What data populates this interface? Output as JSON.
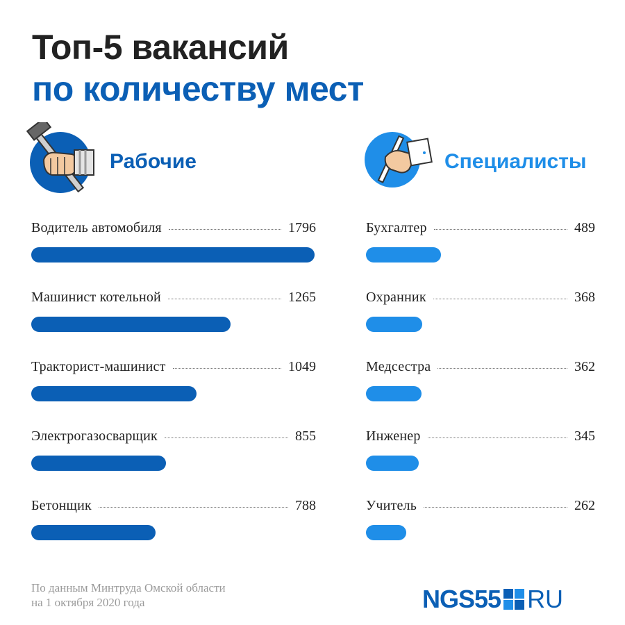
{
  "title": {
    "line1": "Топ-5 вакансий",
    "line2": "по количеству мест"
  },
  "colors": {
    "dark_blue": "#0b5fb5",
    "light_blue": "#1f8ee8",
    "text": "#222222",
    "muted": "#9a9a9a"
  },
  "chart_data": [
    {
      "type": "bar",
      "title": "Рабочие",
      "icon": "hammer-hand-icon",
      "categories": [
        "Водитель автомобиля",
        "Машинист котельной",
        "Тракторист-машинист",
        "Электрогазосварщик",
        "Бетонщик"
      ],
      "values": [
        1796,
        1265,
        1049,
        855,
        788
      ]
    },
    {
      "type": "bar",
      "title": "Специалисты",
      "icon": "pen-hand-icon",
      "categories": [
        "Бухгалтер",
        "Охранник",
        "Медсестра",
        "Инженер",
        "Учитель"
      ],
      "values": [
        489,
        368,
        362,
        345,
        262
      ]
    }
  ],
  "footnote": {
    "line1": "По данным Минтруда Омской области",
    "line2": "на 1 октября 2020 года"
  },
  "logo": {
    "brand": "NGS55",
    "domain": "RU"
  }
}
